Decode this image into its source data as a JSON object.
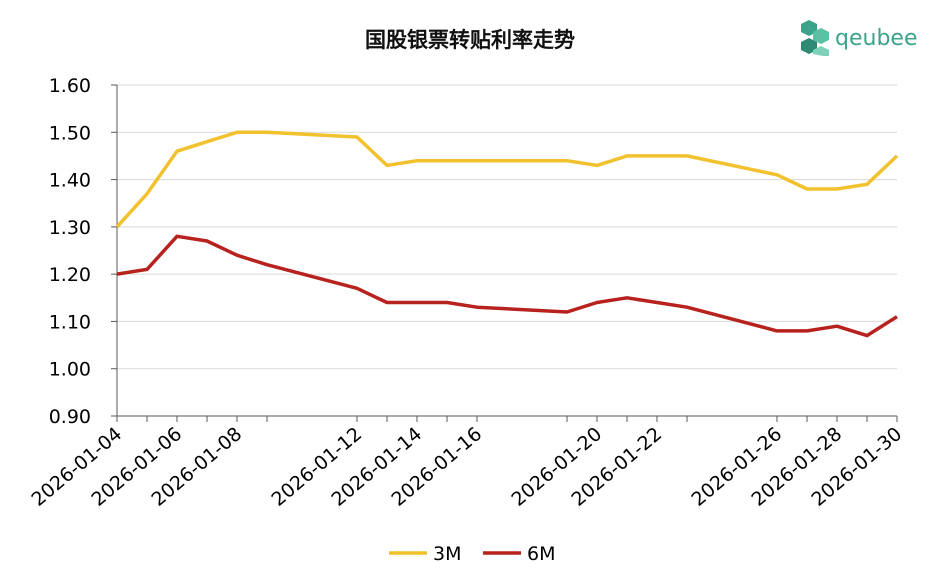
{
  "brand": {
    "name": "qeubee",
    "color": "#3aa38a",
    "icon": "cube-cluster-icon"
  },
  "chart_data": {
    "type": "line",
    "title": "国股银票转贴利率走势",
    "xlabel": "",
    "ylabel": "",
    "ylim": [
      0.9,
      1.6
    ],
    "y_ticks": [
      "0.90",
      "1.00",
      "1.10",
      "1.20",
      "1.30",
      "1.40",
      "1.50",
      "1.60"
    ],
    "x_tick_labels": [
      "2026-01-04",
      "2026-01-06",
      "2026-01-08",
      "2026-01-12",
      "2026-01-14",
      "2026-01-16",
      "2026-01-20",
      "2026-01-22",
      "2026-01-26",
      "2026-01-28",
      "2026-01-30"
    ],
    "x": [
      "2026-01-04",
      "2026-01-05",
      "2026-01-06",
      "2026-01-07",
      "2026-01-08",
      "2026-01-09",
      "2026-01-12",
      "2026-01-13",
      "2026-01-14",
      "2026-01-15",
      "2026-01-16",
      "2026-01-19",
      "2026-01-20",
      "2026-01-21",
      "2026-01-22",
      "2026-01-23",
      "2026-01-26",
      "2026-01-27",
      "2026-01-28",
      "2026-01-29",
      "2026-01-30"
    ],
    "grid": "horizontal",
    "legend": "bottom",
    "series": [
      {
        "name": "3M",
        "color": "#f2c12e",
        "values": [
          1.3,
          1.37,
          1.46,
          1.48,
          1.5,
          1.5,
          1.49,
          1.43,
          1.44,
          1.44,
          1.44,
          1.44,
          1.43,
          1.45,
          1.45,
          1.45,
          1.41,
          1.38,
          1.38,
          1.39,
          1.45
        ]
      },
      {
        "name": "6M",
        "color": "#b8221e",
        "values": [
          1.2,
          1.21,
          1.28,
          1.27,
          1.24,
          1.22,
          1.17,
          1.14,
          1.14,
          1.14,
          1.13,
          1.12,
          1.14,
          1.15,
          1.14,
          1.13,
          1.08,
          1.08,
          1.09,
          1.07,
          1.11
        ]
      }
    ]
  }
}
